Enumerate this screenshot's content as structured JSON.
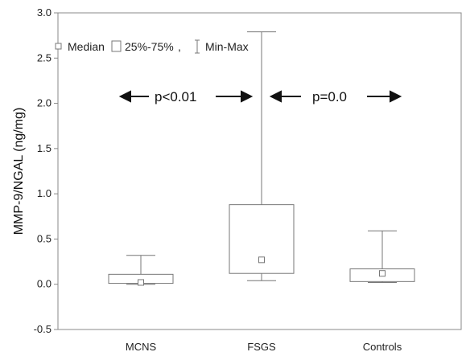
{
  "chart_data": {
    "type": "box",
    "categories": [
      "MCNS",
      "FSGS",
      "Controls"
    ],
    "ylabel": "MMP-9/NGAL (ng/mg)",
    "xlabel": "",
    "ylim": [
      -0.5,
      3.0
    ],
    "yticks": [
      "-0.5",
      "0.0",
      "0.5",
      "1.0",
      "1.5",
      "2.0",
      "2.5",
      "3.0"
    ],
    "boxes": [
      {
        "name": "MCNS",
        "min": 0.0,
        "q1": 0.01,
        "median": 0.02,
        "q3": 0.11,
        "max": 0.32
      },
      {
        "name": "FSGS",
        "min": 0.04,
        "q1": 0.12,
        "median": 0.27,
        "q3": 0.88,
        "max": 2.79
      },
      {
        "name": "Controls",
        "min": 0.02,
        "q1": 0.03,
        "median": 0.12,
        "q3": 0.17,
        "max": 0.59
      }
    ],
    "legend": {
      "position": "top-left",
      "median": "Median",
      "box": "25%-75%",
      "separator": ",",
      "whisker": "Min-Max"
    },
    "annotations": [
      {
        "text": "p<0.01",
        "y": 2.1
      },
      {
        "text": "p=0.0",
        "y": 2.1
      }
    ],
    "grid": false
  }
}
